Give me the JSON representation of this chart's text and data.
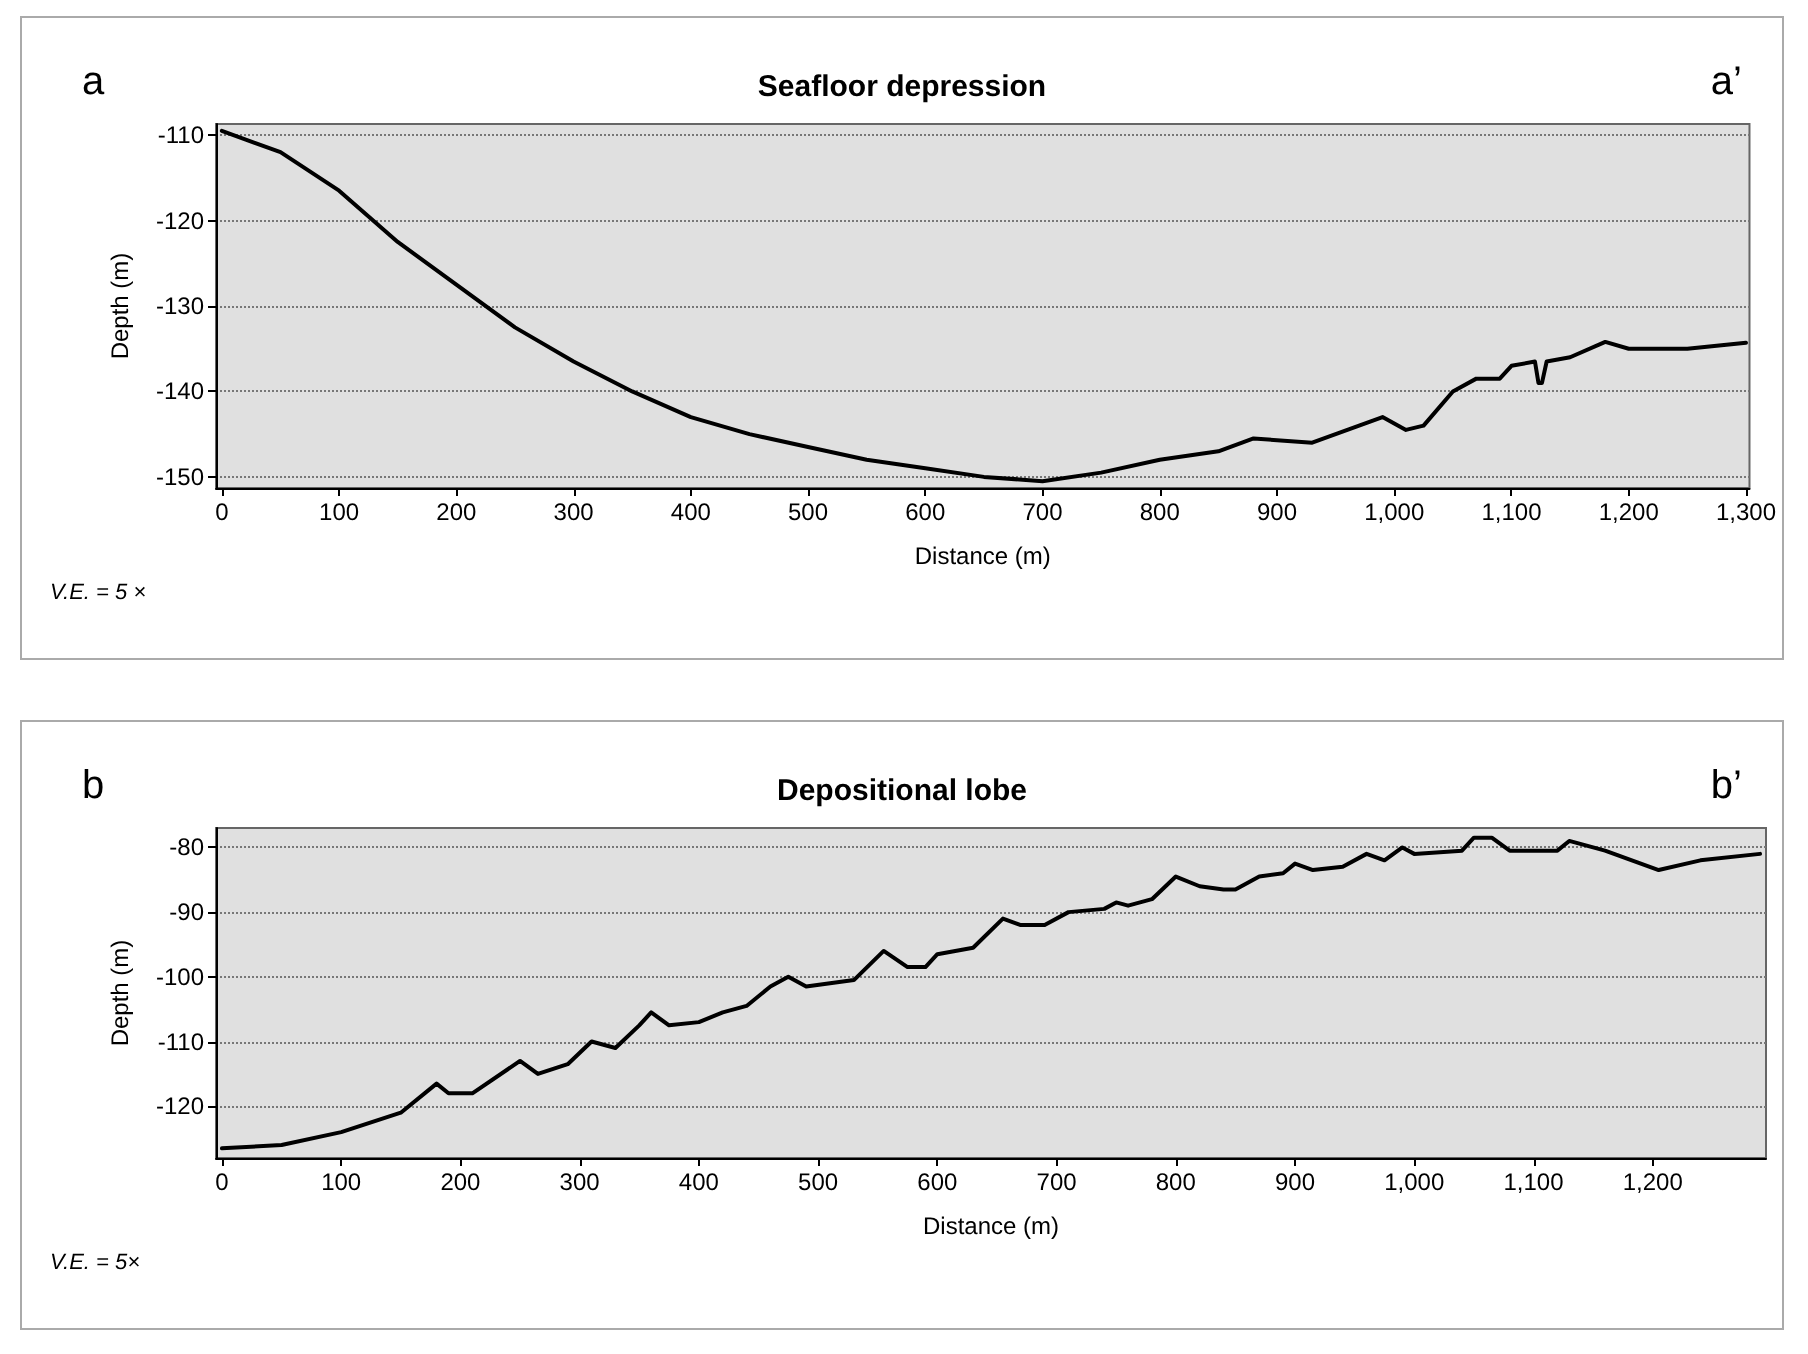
{
  "chart_data": [
    {
      "type": "line",
      "title": "Seafloor depression",
      "xlabel": "Distance (m)",
      "ylabel": "Depth (m)",
      "annotations": [
        "a",
        "a’",
        "V.E. = 5 ×"
      ],
      "x": [
        0,
        50,
        100,
        150,
        200,
        250,
        300,
        350,
        400,
        450,
        500,
        550,
        600,
        650,
        700,
        750,
        800,
        850,
        880,
        930,
        960,
        990,
        1010,
        1025,
        1050,
        1070,
        1090,
        1100,
        1120,
        1123,
        1126,
        1130,
        1150,
        1180,
        1200,
        1250,
        1300
      ],
      "series": [
        {
          "color": "#000000",
          "values": [
            -109.5,
            -112,
            -116.5,
            -122.5,
            -127.5,
            -132.5,
            -136.5,
            -140,
            -143,
            -145,
            -146.5,
            -148,
            -149,
            -150,
            -150.5,
            -149.5,
            -148,
            -147,
            -145.5,
            -146,
            -144.5,
            -143,
            -144.5,
            -144,
            -140,
            -138.5,
            -138.5,
            -137,
            -136.5,
            -139,
            -139,
            -136.5,
            -136,
            -134.2,
            -135,
            -135,
            -134.3
          ]
        }
      ],
      "xlim": [
        -5,
        1303
      ],
      "xticks": [
        0,
        100,
        200,
        300,
        400,
        500,
        600,
        700,
        800,
        900,
        {
          "value": 1000,
          "label": "1,000"
        },
        {
          "value": 1100,
          "label": "1,100"
        },
        {
          "value": 1200,
          "label": "1,200"
        },
        {
          "value": 1300,
          "label": "1,300"
        }
      ],
      "ylim": [
        -151.3,
        -108.7
      ],
      "yticks": [
        -150,
        -140,
        -130,
        -120,
        -110
      ],
      "grid": "y",
      "marker": "none",
      "line_style": "solid"
    },
    {
      "type": "line",
      "title": "Depositional lobe",
      "xlabel": "Distance (m)",
      "ylabel": "Depth (m)",
      "annotations": [
        "b",
        "b’",
        "V.E. = 5×"
      ],
      "x": [
        0,
        50,
        100,
        150,
        180,
        190,
        210,
        250,
        265,
        290,
        310,
        330,
        350,
        360,
        375,
        400,
        420,
        440,
        460,
        475,
        490,
        510,
        530,
        555,
        575,
        590,
        600,
        630,
        655,
        670,
        690,
        710,
        740,
        750,
        760,
        780,
        800,
        820,
        840,
        850,
        870,
        890,
        900,
        915,
        940,
        960,
        975,
        990,
        1000,
        1040,
        1050,
        1065,
        1080,
        1120,
        1130,
        1160,
        1205,
        1240,
        1290
      ],
      "series": [
        {
          "color": "#000000",
          "values": [
            -126.5,
            -126,
            -124,
            -121,
            -116.5,
            -118,
            -118,
            -113,
            -115,
            -113.5,
            -110,
            -111,
            -107.5,
            -105.5,
            -107.5,
            -107,
            -105.5,
            -104.5,
            -101.5,
            -100,
            -101.5,
            -101,
            -100.5,
            -96,
            -98.5,
            -98.5,
            -96.5,
            -95.5,
            -91,
            -92,
            -92,
            -90,
            -89.5,
            -88.5,
            -89,
            -88,
            -84.5,
            -86,
            -86.5,
            -86.5,
            -84.5,
            -84,
            -82.5,
            -83.5,
            -83,
            -81,
            -82,
            -80,
            -81,
            -80.5,
            -78.5,
            -78.5,
            -80.5,
            -80.5,
            -79,
            -80.5,
            -83.5,
            -82,
            -81
          ]
        }
      ],
      "xlim": [
        -5,
        1295
      ],
      "xticks": [
        0,
        100,
        200,
        300,
        400,
        500,
        600,
        700,
        800,
        900,
        {
          "value": 1000,
          "label": "1,000"
        },
        {
          "value": 1100,
          "label": "1,100"
        },
        {
          "value": 1200,
          "label": "1,200"
        }
      ],
      "ylim": [
        -128,
        -77
      ],
      "yticks": [
        -120,
        -110,
        -100,
        -90,
        -80
      ],
      "grid": "y",
      "marker": "none",
      "line_style": "solid"
    }
  ]
}
